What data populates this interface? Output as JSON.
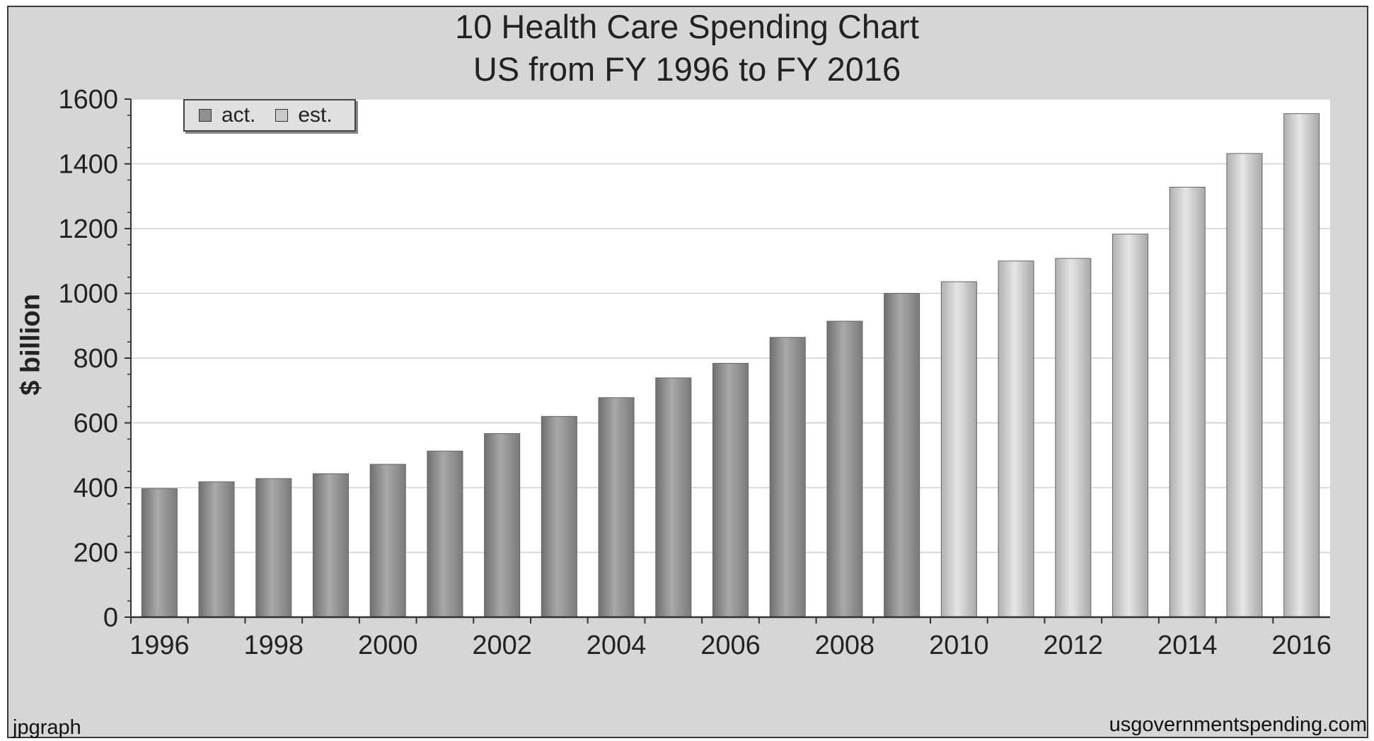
{
  "title": "10 Health Care Spending Chart",
  "subtitle": "US from FY 1996 to FY 2016",
  "footer_left": "jpgraph",
  "footer_right": "usgovernmentspending.com",
  "colors": {
    "frame_bg": "#d6d6d6",
    "plot_bg": "#ffffff",
    "act_bar": "#8f8f8f",
    "est_bar": "#c9c9c9"
  },
  "chart_data": {
    "type": "bar",
    "title": "10 Health Care Spending Chart",
    "subtitle": "US from FY 1996 to FY 2016",
    "xlabel": "",
    "ylabel": "$ billion",
    "ylim": [
      0,
      1600
    ],
    "yticks": [
      0,
      200,
      400,
      600,
      800,
      1000,
      1200,
      1400,
      1600
    ],
    "xtick_labels": [
      "1996",
      "1998",
      "2000",
      "2002",
      "2004",
      "2006",
      "2008",
      "2010",
      "2012",
      "2014",
      "2016"
    ],
    "grid": true,
    "legend_position": "top-left",
    "categories": [
      "1996",
      "1997",
      "1998",
      "1999",
      "2000",
      "2001",
      "2002",
      "2003",
      "2004",
      "2005",
      "2006",
      "2007",
      "2008",
      "2009",
      "2010",
      "2011",
      "2012",
      "2013",
      "2014",
      "2015",
      "2016"
    ],
    "series": [
      {
        "name": "act.",
        "values": [
          397,
          418,
          428,
          443,
          472,
          513,
          567,
          620,
          678,
          739,
          784,
          864,
          914,
          1000,
          null,
          null,
          null,
          null,
          null,
          null,
          null
        ]
      },
      {
        "name": "est.",
        "values": [
          null,
          null,
          null,
          null,
          null,
          null,
          null,
          null,
          null,
          null,
          null,
          null,
          null,
          null,
          1036,
          1100,
          1108,
          1183,
          1328,
          1432,
          1555
        ]
      }
    ]
  }
}
